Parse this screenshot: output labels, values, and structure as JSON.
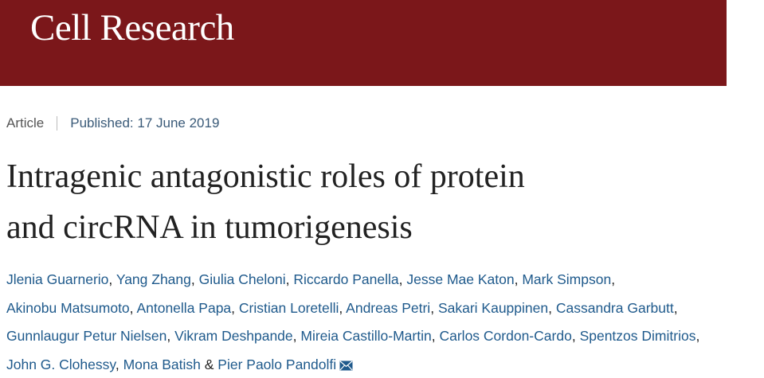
{
  "header": {
    "journal": "Cell Research"
  },
  "meta": {
    "article_type": "Article",
    "published_label": "Published:",
    "published_date": "17 June 2019"
  },
  "article": {
    "title_lines": [
      "Intragenic antagonistic roles of protein",
      "and circRNA in tumorigenesis"
    ],
    "authors": [
      "Jlenia Guarnerio",
      "Yang Zhang",
      "Giulia Cheloni",
      "Riccardo Panella",
      "Jesse Mae Katon",
      "Mark Simpson",
      "Akinobu Matsumoto",
      "Antonella Papa",
      "Cristian Loretelli",
      "Andreas Petri",
      "Sakari Kauppinen",
      "Cassandra Garbutt",
      "Gunnlaugur Petur Nielsen",
      "Vikram Deshpande",
      "Mireia Castillo-Martin",
      "Carlos Cordon-Cardo",
      "Spentzos Dimitrios",
      "John G. Clohessy",
      "Mona Batish",
      "Pier Paolo Pandolfi"
    ],
    "separator": ",",
    "conjunction": "&"
  }
}
